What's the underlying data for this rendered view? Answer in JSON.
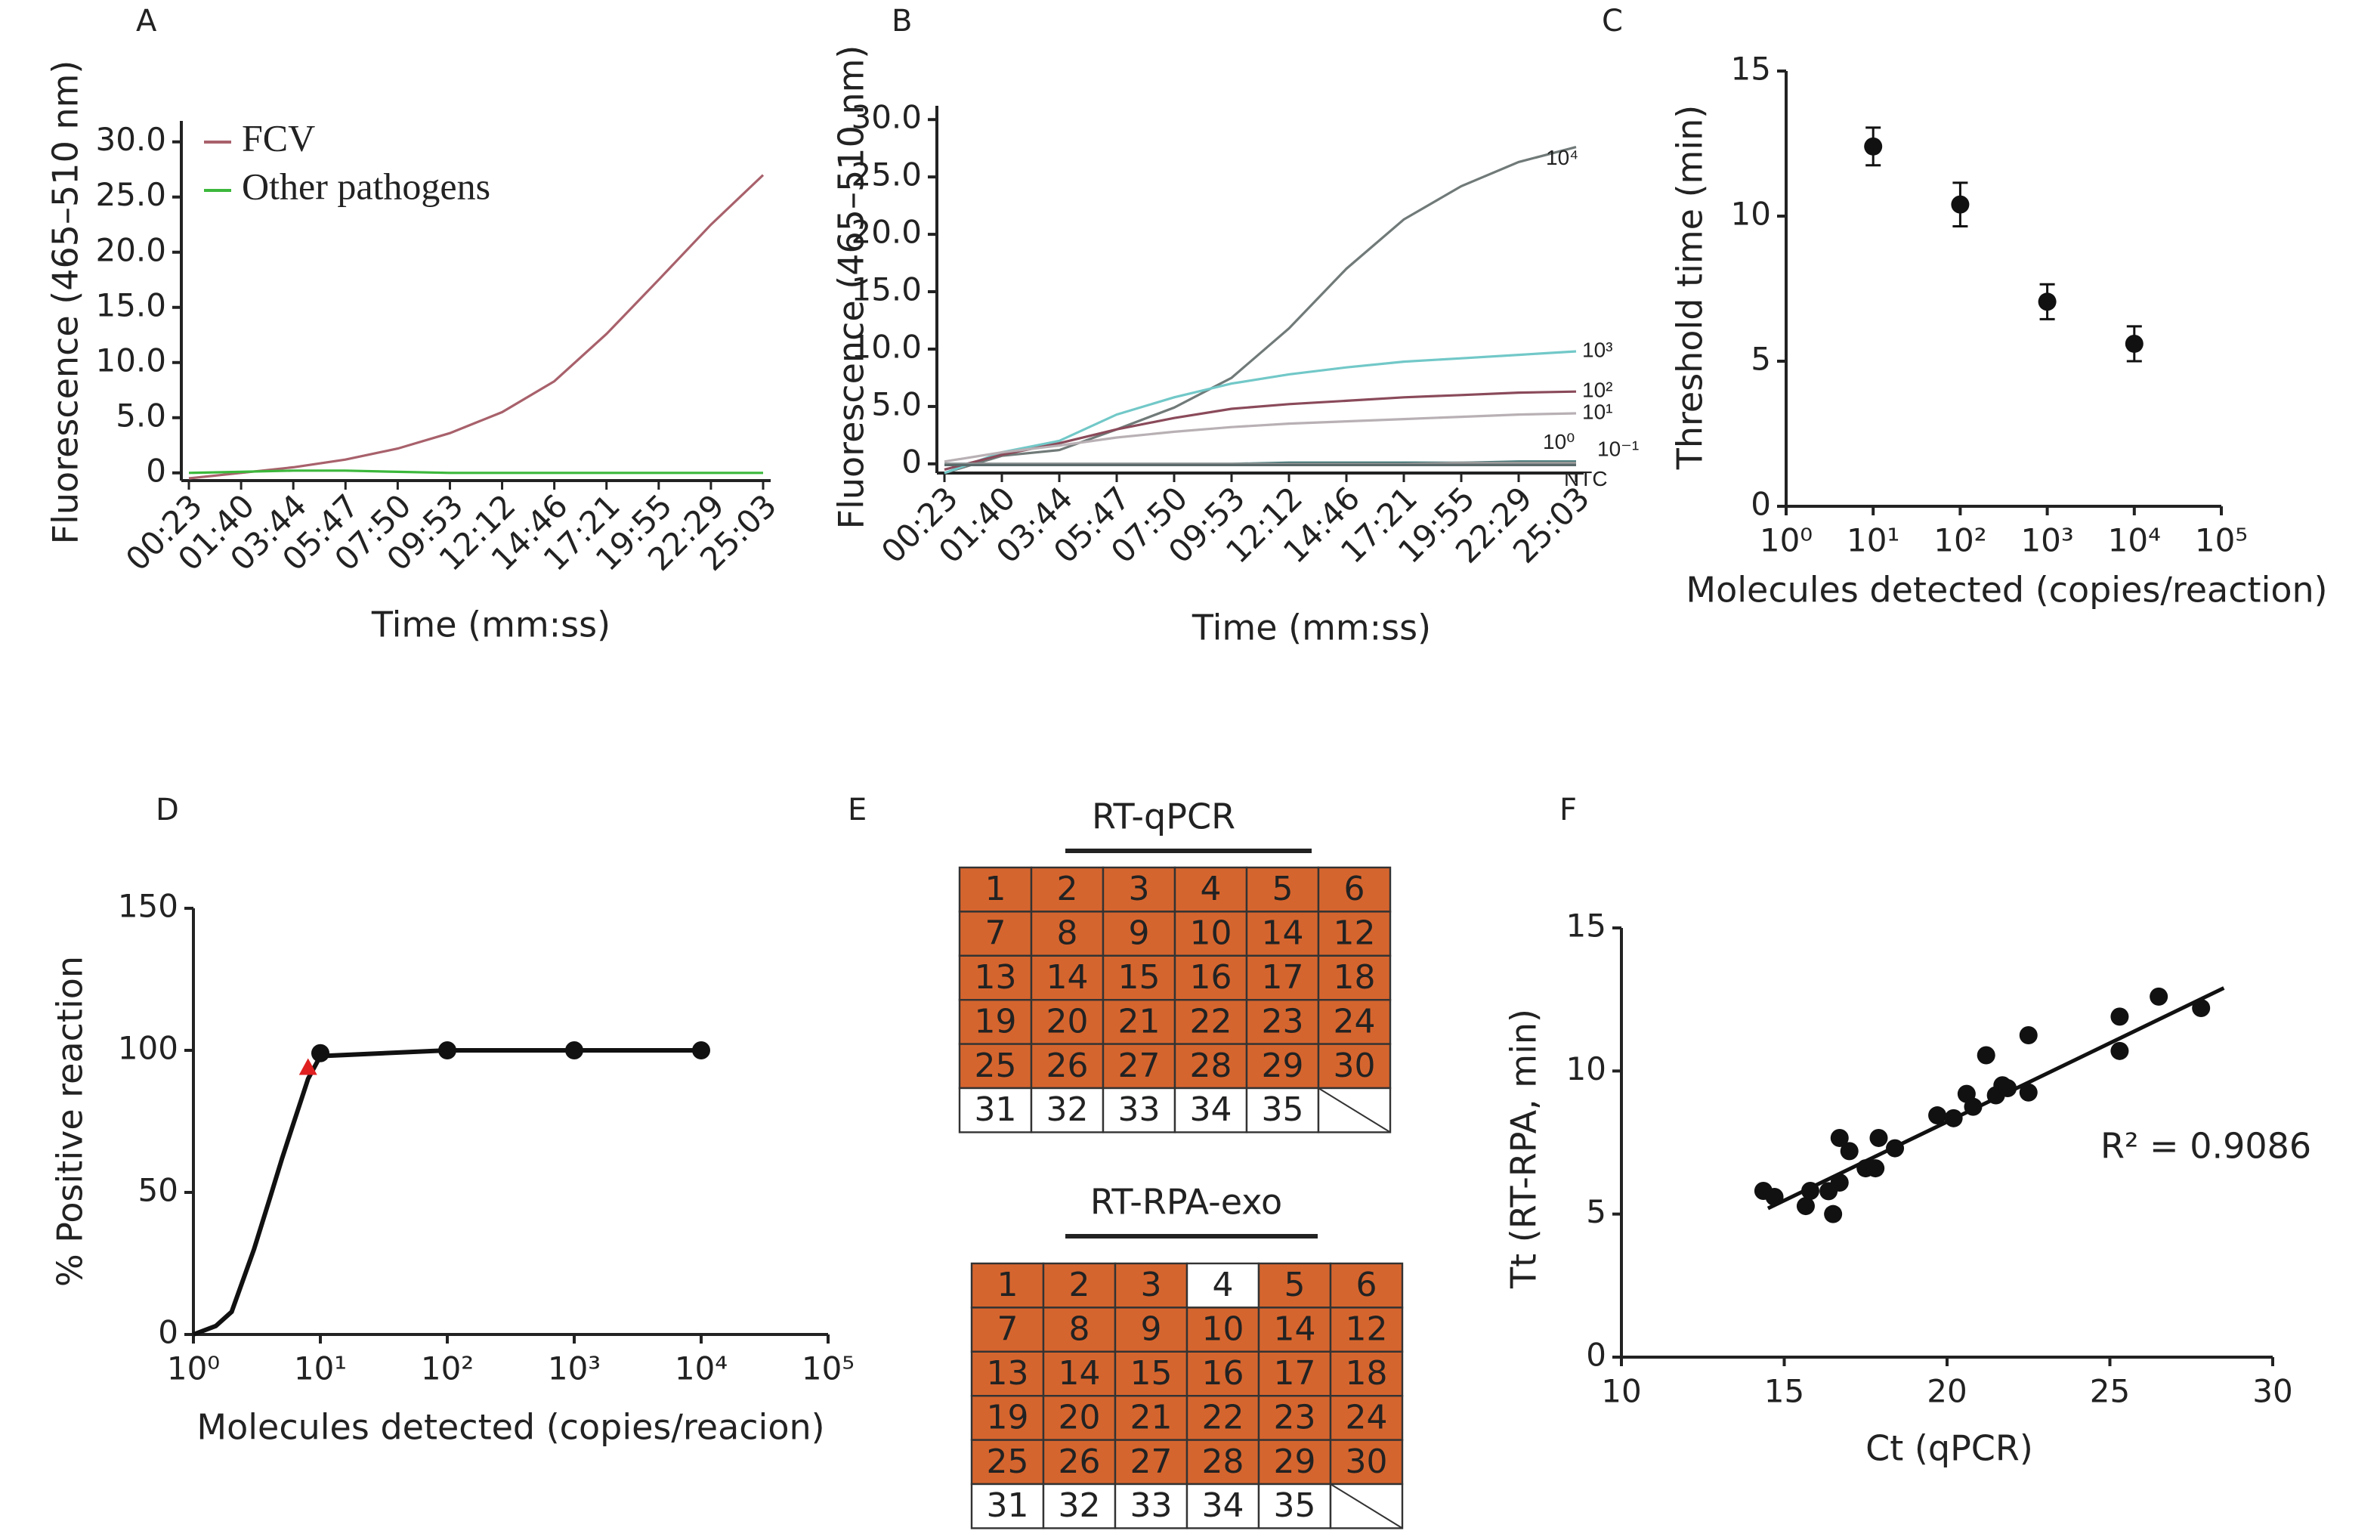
{
  "chart_data": [
    {
      "type": "line",
      "label": "A",
      "xlabel": "Time (mm:ss)",
      "ylabel": "Fluorescence (465–510 nm)",
      "categories": [
        "00:23",
        "01:40",
        "03:44",
        "05:47",
        "07:50",
        "09:53",
        "12:12",
        "14:46",
        "17:21",
        "19:55",
        "22:29",
        "25:03"
      ],
      "ylim": [
        -0.7,
        31.9
      ],
      "yticks": [
        0,
        {
          "value": 5,
          "label": "5.0"
        },
        {
          "value": 10,
          "label": "10.0"
        },
        {
          "value": 15,
          "label": "15.0"
        },
        {
          "value": 20,
          "label": "20.0"
        },
        {
          "value": 25,
          "label": "25.0"
        },
        {
          "value": 30,
          "label": "30.0"
        }
      ],
      "legend": "upper left",
      "series": [
        {
          "name": "FCV",
          "color": "#a8616b",
          "values": [
            -0.5,
            0,
            0.5,
            1.2,
            2.2,
            3.6,
            5.5,
            8.3,
            12.6,
            17.5,
            22.5,
            27
          ]
        },
        {
          "name": "Other pathogens",
          "color": "#3cb83c",
          "values": [
            0,
            0.1,
            0.2,
            0.2,
            0.1,
            0,
            0,
            0,
            0,
            0,
            0,
            0
          ]
        }
      ]
    },
    {
      "type": "line",
      "label": "B",
      "xlabel": "Time (mm:ss)",
      "ylabel": "Fluorescence (465–510 nm)",
      "categories": [
        "00:23",
        "01:40",
        "03:44",
        "05:47",
        "07:50",
        "09:53",
        "12:12",
        "14:46",
        "17:21",
        "19:55",
        "22:29",
        "25:03"
      ],
      "ylim": [
        -0.8,
        31.2
      ],
      "yticks": [
        0,
        {
          "value": 5,
          "label": "5.0"
        },
        {
          "value": 10,
          "label": "10.0"
        },
        {
          "value": 15,
          "label": "15.0"
        },
        {
          "value": 20,
          "label": "20.0"
        },
        {
          "value": 25,
          "label": "25.0"
        },
        {
          "value": 30,
          "label": "30.0"
        }
      ],
      "legend": "line end",
      "series": [
        {
          "name": "10⁴",
          "color": "#707a78",
          "values": [
            -0.8,
            0.7,
            1.2,
            3,
            4.9,
            7.5,
            11.8,
            17,
            21.3,
            24.2,
            26.3,
            27.6
          ]
        },
        {
          "name": "10³",
          "color": "#72c8c8",
          "values": [
            -0.8,
            1,
            2,
            4.3,
            5.8,
            7,
            7.8,
            8.4,
            8.9,
            9.2,
            9.5,
            9.8
          ]
        },
        {
          "name": "10²",
          "color": "#8a4a5a",
          "values": [
            -0.5,
            0.8,
            1.8,
            3,
            4,
            4.8,
            5.2,
            5.5,
            5.8,
            6,
            6.2,
            6.3
          ]
        },
        {
          "name": "10¹",
          "color": "#b8b0b4",
          "values": [
            0.2,
            1,
            1.6,
            2.3,
            2.8,
            3.2,
            3.5,
            3.7,
            3.9,
            4.1,
            4.3,
            4.4
          ]
        },
        {
          "name": "10⁰",
          "color": "#2a6a6a",
          "values": [
            0,
            0,
            0,
            0,
            0,
            0,
            0.1,
            0.1,
            0.1,
            0.1,
            0.2,
            0.2
          ]
        },
        {
          "name": "10⁻¹",
          "color": "#9a9a9a",
          "values": [
            0,
            0,
            0,
            0,
            0,
            0,
            0,
            0,
            0,
            0.1,
            0.1,
            0.1
          ]
        },
        {
          "name": "NTC",
          "color": "#5a6a6a",
          "values": [
            -0.1,
            -0.1,
            -0.1,
            -0.1,
            -0.1,
            -0.1,
            -0.1,
            -0.1,
            -0.1,
            -0.1,
            -0.1,
            -0.1
          ]
        }
      ]
    },
    {
      "type": "scatter",
      "label": "C",
      "xlabel": "Molecules detected (copies/reaction)",
      "ylabel": "Threshold time (min)",
      "xlog": true,
      "xlim": [
        1,
        100000
      ],
      "xticks": [
        {
          "value": 1,
          "label": "10⁰"
        },
        {
          "value": 10,
          "label": "10¹"
        },
        {
          "value": 100,
          "label": "10²"
        },
        {
          "value": 1000,
          "label": "10³"
        },
        {
          "value": 10000,
          "label": "10⁴"
        },
        {
          "value": 100000,
          "label": "10⁵"
        }
      ],
      "ylim": [
        0,
        15
      ],
      "yticks": [
        0,
        5,
        10,
        15
      ],
      "color": "#111111",
      "x": [
        10,
        100,
        1000,
        10000
      ],
      "values": [
        12.4,
        10.4,
        7.05,
        5.6
      ],
      "errors": [
        0.65,
        0.75,
        0.6,
        0.6
      ]
    },
    {
      "type": "line",
      "label": "D",
      "xlabel": "Molecules detected (copies/reacion)",
      "ylabel": "% Positive reaction",
      "xlog": true,
      "xlim": [
        1,
        100000
      ],
      "xticks": [
        {
          "value": 1,
          "label": "10⁰"
        },
        {
          "value": 10,
          "label": "10¹"
        },
        {
          "value": 100,
          "label": "10²"
        },
        {
          "value": 1000,
          "label": "10³"
        },
        {
          "value": 10000,
          "label": "10⁴"
        },
        {
          "value": 100000,
          "label": "10⁵"
        }
      ],
      "ylim": [
        0,
        150
      ],
      "yticks": [
        0,
        50,
        100,
        150
      ],
      "series": [
        {
          "color": "#111111",
          "x": [
            1,
            1.5,
            2,
            3,
            4,
            5,
            6,
            7,
            8,
            10,
            100,
            1000,
            10000
          ],
          "values": [
            0,
            3,
            8,
            30,
            48,
            62,
            73,
            82,
            90,
            98,
            100,
            100,
            100
          ]
        },
        {
          "color": "#e02020",
          "marker": "triangle",
          "x": [
            8
          ],
          "values": [
            94
          ]
        },
        {
          "color": "#111111",
          "marker": "circle",
          "x": [
            10,
            100,
            1000,
            10000
          ],
          "values": [
            99,
            100,
            100,
            100
          ]
        }
      ]
    },
    {
      "type": "scatter",
      "label": "F",
      "xlabel": "Ct (qPCR)",
      "ylabel": "Tt (RT-RPA, min)",
      "xlim": [
        10,
        30
      ],
      "xticks": [
        10,
        15,
        20,
        25,
        30
      ],
      "ylim": [
        0,
        15
      ],
      "yticks": [
        0,
        5,
        10,
        15
      ],
      "color": "#111111",
      "x": [
        14.36,
        14.7,
        15.66,
        15.8,
        16.36,
        16.5,
        16.7,
        16.7,
        17.0,
        17.5,
        17.8,
        17.9,
        18.4,
        19.7,
        20.2,
        20.6,
        20.8,
        21.2,
        21.5,
        21.7,
        21.86,
        22.5,
        22.5,
        25.3,
        25.3,
        26.5,
        27.8
      ],
      "values": [
        5.81,
        5.6,
        5.28,
        5.81,
        5.8,
        5.0,
        6.1,
        7.66,
        7.2,
        6.6,
        6.6,
        7.66,
        7.3,
        8.45,
        8.35,
        9.2,
        8.75,
        10.55,
        9.15,
        9.5,
        9.4,
        11.25,
        9.25,
        11.9,
        10.7,
        12.6,
        12.2
      ],
      "fit": {
        "x": [
          14.5,
          28.5
        ],
        "values": [
          5.2,
          12.9
        ]
      },
      "annotation": "R² = 0.9086"
    }
  ],
  "tables": {
    "label": "E",
    "grids": [
      {
        "title": "RT-qPCR",
        "rows": [
          [
            1,
            2,
            3,
            4,
            5,
            6
          ],
          [
            7,
            8,
            9,
            10,
            14,
            12
          ],
          [
            13,
            14,
            15,
            16,
            17,
            18
          ],
          [
            19,
            20,
            21,
            22,
            23,
            24
          ],
          [
            25,
            26,
            27,
            28,
            29,
            30
          ],
          [
            31,
            32,
            33,
            34,
            35,
            null
          ]
        ],
        "positive": [
          [
            true,
            true,
            true,
            true,
            true,
            true
          ],
          [
            true,
            true,
            true,
            true,
            true,
            true
          ],
          [
            true,
            true,
            true,
            true,
            true,
            true
          ],
          [
            true,
            true,
            true,
            true,
            true,
            true
          ],
          [
            true,
            true,
            true,
            true,
            true,
            true
          ],
          [
            false,
            false,
            false,
            false,
            false,
            false
          ]
        ]
      },
      {
        "title": "RT-RPA-exo",
        "rows": [
          [
            1,
            2,
            3,
            4,
            5,
            6
          ],
          [
            7,
            8,
            9,
            10,
            14,
            12
          ],
          [
            13,
            14,
            15,
            16,
            17,
            18
          ],
          [
            19,
            20,
            21,
            22,
            23,
            24
          ],
          [
            25,
            26,
            27,
            28,
            29,
            30
          ],
          [
            31,
            32,
            33,
            34,
            35,
            null
          ]
        ],
        "positive": [
          [
            true,
            true,
            true,
            false,
            true,
            true
          ],
          [
            true,
            true,
            true,
            true,
            true,
            true
          ],
          [
            true,
            true,
            true,
            true,
            true,
            true
          ],
          [
            true,
            true,
            true,
            true,
            true,
            true
          ],
          [
            true,
            true,
            true,
            true,
            true,
            true
          ],
          [
            false,
            false,
            false,
            false,
            false,
            false
          ]
        ]
      }
    ],
    "color": "#d5652e"
  }
}
